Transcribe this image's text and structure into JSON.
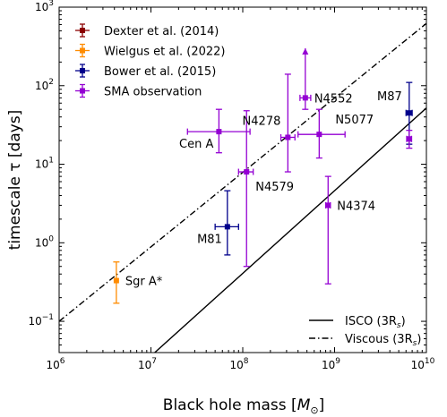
{
  "chart_data": {
    "type": "scatter",
    "xscale": "log",
    "yscale": "log",
    "xlim": [
      1000000.0,
      10000000000.0
    ],
    "ylim": [
      0.04,
      1000
    ],
    "xlabel": "Black hole mass",
    "xlabel_unit_main": "M",
    "xlabel_unit_sub": "⊙",
    "ylabel": "timescale τ [days]",
    "x_ticks": [
      {
        "value": 1000000.0,
        "base": "10",
        "exp": "6"
      },
      {
        "value": 10000000.0,
        "base": "10",
        "exp": "7"
      },
      {
        "value": 100000000.0,
        "base": "10",
        "exp": "8"
      },
      {
        "value": 1000000000.0,
        "base": "10",
        "exp": "9"
      },
      {
        "value": 10000000000.0,
        "base": "10",
        "exp": "10"
      }
    ],
    "y_ticks": [
      {
        "value": 0.1,
        "base": "10",
        "exp": "−1"
      },
      {
        "value": 1,
        "base": "10",
        "exp": "0"
      },
      {
        "value": 10,
        "base": "10",
        "exp": "1"
      },
      {
        "value": 100,
        "base": "10",
        "exp": "2"
      },
      {
        "value": 1000,
        "base": "10",
        "exp": "3"
      }
    ],
    "legend_position": "top-left",
    "series": [
      {
        "name": "Dexter et al. (2014)",
        "color": "#8b0000",
        "points": []
      },
      {
        "name": "Wielgus et al. (2022)",
        "color": "#ff8c00",
        "points": [
          {
            "label": "Sgr A*",
            "x": 4200000.0,
            "y": 0.33,
            "y_lo": 0.17,
            "y_hi": 0.57,
            "x_lo": 4200000.0,
            "x_hi": 4200000.0,
            "label_pos": "right"
          }
        ]
      },
      {
        "name": "Bower et al. (2015)",
        "color": "#00008b",
        "points": [
          {
            "label": "M81",
            "x": 68000000.0,
            "y": 1.6,
            "y_lo": 0.7,
            "y_hi": 4.6,
            "x_lo": 50000000.0,
            "x_hi": 90000000.0,
            "label_pos": "below-left"
          },
          {
            "label": "M87",
            "x": 6500000000.0,
            "y": 45,
            "y_lo": 18,
            "y_hi": 110,
            "x_lo": 6000000000.0,
            "x_hi": 7000000000.0,
            "label_pos": "above-left"
          }
        ]
      },
      {
        "name": "SMA observation",
        "color": "#9400d3",
        "points": [
          {
            "label": "Cen A",
            "x": 55000000.0,
            "y": 26,
            "y_lo": 14,
            "y_hi": 50,
            "x_lo": 25000000.0,
            "x_hi": 120000000.0,
            "label_pos": "below-left"
          },
          {
            "label": "N4579",
            "x": 110000000.0,
            "y": 8,
            "y_lo": 0.5,
            "y_hi": 48,
            "x_lo": 90000000.0,
            "x_hi": 130000000.0,
            "label_pos": "below-right"
          },
          {
            "label": "N4278",
            "x": 310000000.0,
            "y": 22,
            "y_lo": 8,
            "y_hi": 140,
            "x_lo": 260000000.0,
            "x_hi": 370000000.0,
            "label_pos": "above-left"
          },
          {
            "label": "N4552",
            "x": 480000000.0,
            "y": 70,
            "y_lo": 50,
            "y_hi": 300,
            "x_lo": 420000000.0,
            "x_hi": 550000000.0,
            "label_pos": "right",
            "upper_arrow": true
          },
          {
            "label": "N5077",
            "x": 680000000.0,
            "y": 24,
            "y_lo": 12,
            "y_hi": 50,
            "x_lo": 400000000.0,
            "x_hi": 1300000000.0,
            "label_pos": "above-right"
          },
          {
            "label": "N4374",
            "x": 850000000.0,
            "y": 3,
            "y_lo": 0.3,
            "y_hi": 7,
            "x_lo": 800000000.0,
            "x_hi": 900000000.0,
            "label_pos": "right"
          },
          {
            "label": "",
            "x": 6500000000.0,
            "y": 21,
            "y_lo": 16,
            "y_hi": 27,
            "x_lo": 6100000000.0,
            "x_hi": 6900000000.0,
            "label_pos": "none"
          }
        ]
      }
    ],
    "lines": [
      {
        "name": "ISCO (3R",
        "name_sub": "s",
        "name_end": ")",
        "style": "solid",
        "points": [
          [
            11000000.0,
            0.04
          ],
          [
            10000000000.0,
            52
          ]
        ]
      },
      {
        "name": "Viscous (3R",
        "name_sub": "s",
        "name_end": ")",
        "style": "dashdot",
        "points": [
          [
            1000000.0,
            0.1
          ],
          [
            10000000000.0,
            620
          ]
        ]
      }
    ]
  }
}
